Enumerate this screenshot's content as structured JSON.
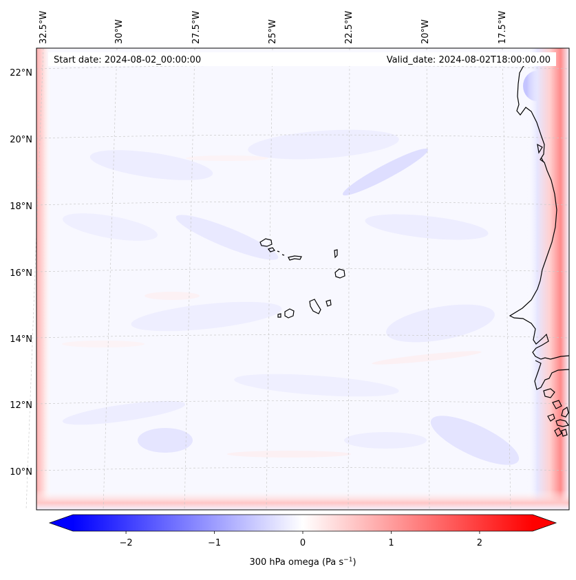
{
  "map": {
    "start_date": "Start date: 2024-08-02_00:00:00",
    "valid_date": "Valid_date: 2024-08-02T18:00:00.00",
    "lon_labels": [
      "32.5°W",
      "30°W",
      "27.5°W",
      "25°W",
      "22.5°W",
      "20°W",
      "17.5°W"
    ],
    "lat_labels": [
      "22°N",
      "20°N",
      "18°N",
      "16°N",
      "14°N",
      "12°N",
      "10°N"
    ],
    "islands": [
      "Santo Antão",
      "São Vicente",
      "Santa Luzia",
      "São Nicolau",
      "Sal",
      "Boa Vista",
      "Maio",
      "Santiago",
      "Fogo",
      "Brava"
    ],
    "coastline": "West Africa"
  },
  "colorbar": {
    "label": "300 hPa omega (Pa s",
    "label_sup": "−1",
    "label_close": ")",
    "ticks": [
      "−2",
      "−1",
      "0",
      "1",
      "2"
    ],
    "tick_values": [
      -2,
      -1,
      0,
      1,
      2
    ],
    "range": [
      -2.6,
      2.6
    ],
    "colormap": "bwr",
    "colors": {
      "min": "#0000ff",
      "mid": "#ffffff",
      "max": "#ff0000"
    }
  }
}
